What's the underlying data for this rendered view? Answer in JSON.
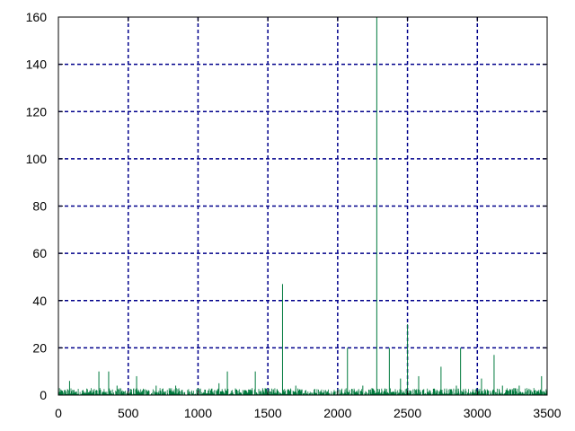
{
  "chart_data": {
    "type": "line",
    "title": "",
    "xlabel": "",
    "ylabel": "",
    "xlim": [
      0,
      3500
    ],
    "ylim": [
      0,
      160
    ],
    "grid": true,
    "x_ticks": [
      "0",
      "500",
      "1000",
      "1500",
      "2000",
      "2500",
      "3000",
      "3500"
    ],
    "y_ticks": [
      "0",
      "20",
      "40",
      "60",
      "80",
      "100",
      "120",
      "140",
      "160"
    ],
    "series": [
      {
        "color": "#007a3d",
        "style": "impulse",
        "baseline_max": 3,
        "x": [
          80,
          290,
          360,
          420,
          560,
          700,
          840,
          1000,
          1150,
          1210,
          1410,
          1605,
          1700,
          2070,
          2180,
          2280,
          2370,
          2450,
          2500,
          2580,
          2740,
          2850,
          2880,
          3030,
          3120,
          3180,
          3300,
          3460
        ],
        "values": [
          6,
          10,
          10,
          4,
          8,
          4,
          4,
          3,
          5,
          10,
          10,
          47,
          4,
          20,
          4,
          160,
          20,
          7,
          30,
          8,
          12,
          4,
          20,
          7,
          17,
          4,
          4,
          8
        ]
      }
    ]
  },
  "colors": {
    "grid": "#00008b",
    "axes": "#000000",
    "line": "#007a3d"
  }
}
